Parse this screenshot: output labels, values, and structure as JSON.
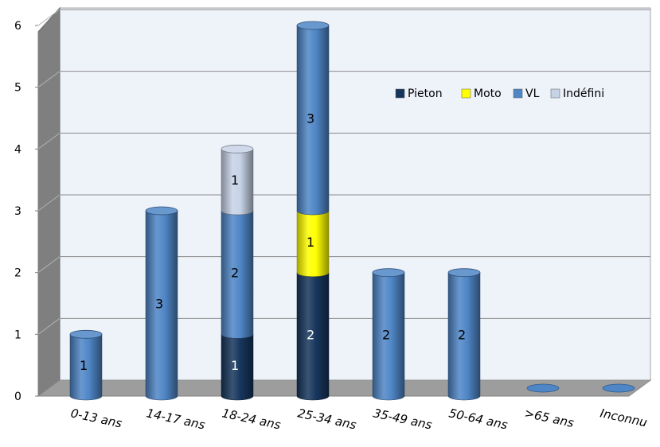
{
  "chart_data": {
    "type": "bar",
    "stacked": true,
    "style": "3d-cylinder",
    "categories": [
      "0-13 ans",
      "14-17 ans",
      "18-24 ans",
      "25-34 ans",
      "35-49 ans",
      "50-64 ans",
      ">65 ans",
      "Inconnu"
    ],
    "series": [
      {
        "name": "Pieton",
        "color": "#17365d",
        "values": [
          0,
          0,
          1,
          2,
          0,
          0,
          0,
          0
        ]
      },
      {
        "name": "Moto",
        "color": "#ffff00",
        "values": [
          0,
          0,
          0,
          1,
          0,
          0,
          0,
          0
        ]
      },
      {
        "name": "VL",
        "color": "#4f86c6",
        "values": [
          1,
          3,
          2,
          3,
          2,
          2,
          0,
          0
        ]
      },
      {
        "name": "Indéfini",
        "color": "#c6d2e6",
        "values": [
          0,
          0,
          1,
          0,
          0,
          0,
          0,
          0
        ]
      }
    ],
    "ylim": [
      0,
      6
    ],
    "yticks": [
      "0",
      "1",
      "2",
      "3",
      "4",
      "5",
      "6"
    ],
    "grid": true,
    "legend_position": "right",
    "title": "",
    "xlabel": "",
    "ylabel": ""
  }
}
